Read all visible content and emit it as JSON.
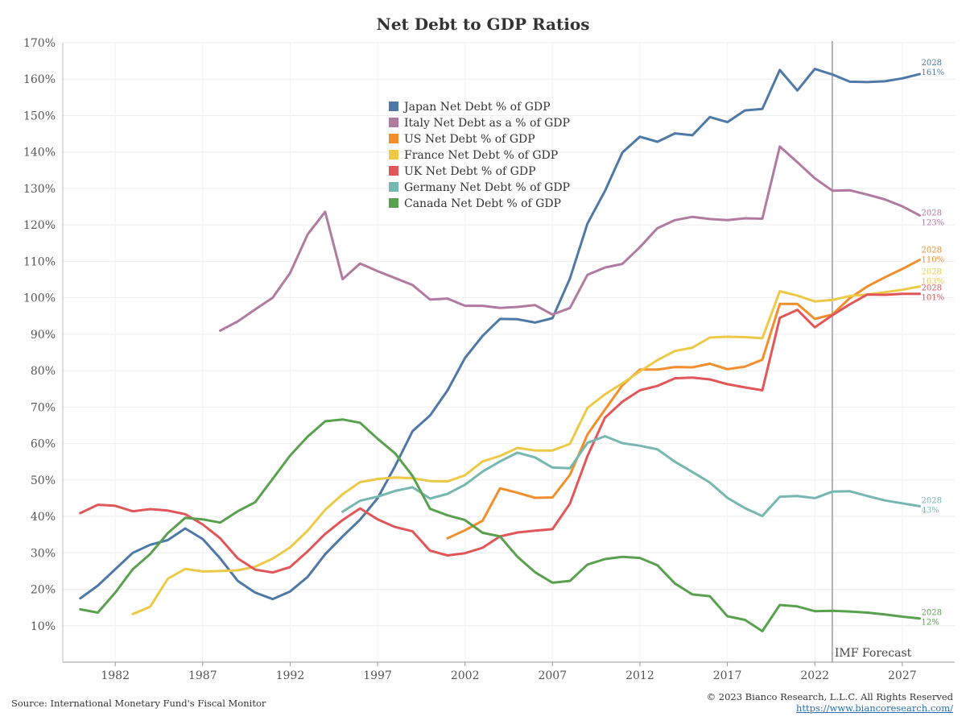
{
  "chart_data": {
    "type": "line",
    "title": "Net Debt to GDP Ratios",
    "xlabel": "",
    "ylabel": "",
    "xlim": [
      1979,
      2030
    ],
    "ylim": [
      0,
      170
    ],
    "x_ticks": [
      1982,
      1987,
      1992,
      1997,
      2002,
      2007,
      2012,
      2017,
      2022,
      2027
    ],
    "y_ticks": [
      {
        "value": 10,
        "label": "10%"
      },
      {
        "value": 20,
        "label": "20%"
      },
      {
        "value": 30,
        "label": "30%"
      },
      {
        "value": 40,
        "label": "40%"
      },
      {
        "value": 50,
        "label": "50%"
      },
      {
        "value": 60,
        "label": "60%"
      },
      {
        "value": 70,
        "label": "70%"
      },
      {
        "value": 80,
        "label": "80%"
      },
      {
        "value": 90,
        "label": "90%"
      },
      {
        "value": 100,
        "label": "100%"
      },
      {
        "value": 110,
        "label": "110%"
      },
      {
        "value": 120,
        "label": "120%"
      },
      {
        "value": 130,
        "label": "130%"
      },
      {
        "value": 140,
        "label": "140%"
      },
      {
        "value": 150,
        "label": "150%"
      },
      {
        "value": 160,
        "label": "160%"
      },
      {
        "value": 170,
        "label": "170%"
      }
    ],
    "grid": true,
    "legend_position": "top-center",
    "forecast_line": {
      "x": 2023,
      "label": "IMF Forecast"
    },
    "series": [
      {
        "name": "Japan Net Debt % of GDP",
        "color": "#4e79a7",
        "x": [
          1980,
          1981,
          1982,
          1983,
          1984,
          1985,
          1986,
          1987,
          1988,
          1989,
          1990,
          1991,
          1992,
          1993,
          1994,
          1995,
          1996,
          1997,
          1998,
          1999,
          2000,
          2001,
          2002,
          2003,
          2004,
          2005,
          2006,
          2007,
          2008,
          2009,
          2010,
          2011,
          2012,
          2013,
          2014,
          2015,
          2016,
          2017,
          2018,
          2019,
          2020,
          2021,
          2022,
          2023,
          2024,
          2025,
          2026,
          2027,
          2028
        ],
        "y": [
          17.5,
          21,
          25.5,
          30,
          32.2,
          33.5,
          36.7,
          33.8,
          28.5,
          22.3,
          19.1,
          17.3,
          19.4,
          23.4,
          29.6,
          34.5,
          39.1,
          45,
          53.8,
          63.4,
          67.7,
          74.6,
          83.5,
          89.5,
          94.2,
          94.1,
          93.2,
          94.4,
          105.3,
          120.4,
          129.3,
          139.9,
          144.2,
          142.8,
          145.1,
          144.6,
          149.6,
          148.2,
          151.4,
          151.8,
          162.5,
          156.9,
          162.8,
          161.3,
          159.3,
          159.2,
          159.4,
          160.2,
          161.4
        ],
        "end_year": "2028",
        "end_label": "161%"
      },
      {
        "name": "Italy Net Debt as a % of GDP",
        "color": "#b07aa1",
        "x": [
          1988,
          1989,
          1990,
          1991,
          1992,
          1993,
          1994,
          1995,
          1996,
          1997,
          1998,
          1999,
          2000,
          2001,
          2002,
          2003,
          2004,
          2005,
          2006,
          2007,
          2008,
          2009,
          2010,
          2011,
          2012,
          2013,
          2014,
          2015,
          2016,
          2017,
          2018,
          2019,
          2020,
          2021,
          2022,
          2023,
          2024,
          2025,
          2026,
          2027,
          2028
        ],
        "y": [
          91,
          93.5,
          96.8,
          100,
          106.8,
          117.4,
          123.6,
          105.1,
          109.4,
          107.3,
          105.4,
          103.5,
          99.5,
          99.8,
          97.8,
          97.8,
          97.2,
          97.5,
          98,
          95.4,
          97.2,
          106.3,
          108.3,
          109.3,
          113.9,
          119.1,
          121.3,
          122.2,
          121.6,
          121.3,
          121.8,
          121.7,
          141.5,
          137.2,
          132.8,
          129.4,
          129.5,
          128.3,
          127,
          125.1,
          122.6
        ],
        "end_year": "2028",
        "end_label": "123%"
      },
      {
        "name": "US Net Debt % of GDP",
        "color": "#f28e2b",
        "x": [
          2001,
          2002,
          2003,
          2004,
          2005,
          2006,
          2007,
          2008,
          2009,
          2010,
          2011,
          2012,
          2013,
          2014,
          2015,
          2016,
          2017,
          2018,
          2019,
          2020,
          2021,
          2022,
          2023,
          2024,
          2025,
          2026,
          2027,
          2028
        ],
        "y": [
          34,
          36.2,
          38.8,
          47.7,
          46.5,
          45.1,
          45.2,
          51.4,
          62.5,
          69.3,
          76,
          80.3,
          80.3,
          81,
          80.9,
          81.9,
          80.4,
          81.1,
          83,
          98.3,
          98.3,
          94.2,
          95.4,
          99.9,
          103.1,
          105.6,
          107.9,
          110.4
        ],
        "end_year": "2028",
        "end_label": "110%"
      },
      {
        "name": "France Net Debt % of GDP",
        "color": "#edc948",
        "x": [
          1983,
          1984,
          1985,
          1986,
          1987,
          1988,
          1989,
          1990,
          1991,
          1992,
          1993,
          1994,
          1995,
          1996,
          1997,
          1998,
          1999,
          2000,
          2001,
          2002,
          2003,
          2004,
          2005,
          2006,
          2007,
          2008,
          2009,
          2010,
          2011,
          2012,
          2013,
          2014,
          2015,
          2016,
          2017,
          2018,
          2019,
          2020,
          2021,
          2022,
          2023,
          2024,
          2025,
          2026,
          2027,
          2028
        ],
        "y": [
          13.2,
          15.2,
          22.9,
          25.6,
          24.9,
          25,
          25.2,
          26.2,
          28.4,
          31.5,
          36.1,
          41.8,
          46.1,
          49.4,
          50.3,
          50.7,
          50.5,
          49.7,
          49.6,
          51.3,
          55.1,
          56.6,
          58.8,
          58.1,
          58.1,
          59.9,
          69.8,
          73.5,
          76.5,
          79.8,
          82.9,
          85.4,
          86.3,
          89.1,
          89.3,
          89.2,
          88.9,
          101.8,
          100.6,
          99,
          99.4,
          100.5,
          100.9,
          101.5,
          102.2,
          103.1
        ],
        "end_year": "2028",
        "end_label": "103%"
      },
      {
        "name": "UK Net Debt % of GDP",
        "color": "#e15759",
        "x": [
          1980,
          1981,
          1982,
          1983,
          1984,
          1985,
          1986,
          1987,
          1988,
          1989,
          1990,
          1991,
          1992,
          1993,
          1994,
          1995,
          1996,
          1997,
          1998,
          1999,
          2000,
          2001,
          2002,
          2003,
          2004,
          2005,
          2006,
          2007,
          2008,
          2009,
          2010,
          2011,
          2012,
          2013,
          2014,
          2015,
          2016,
          2017,
          2018,
          2019,
          2020,
          2021,
          2022,
          2023,
          2024,
          2025,
          2026,
          2027,
          2028
        ],
        "y": [
          40.9,
          43.2,
          42.9,
          41.4,
          42,
          41.6,
          40.6,
          37.8,
          34,
          28.5,
          25.4,
          24.6,
          26.1,
          30.4,
          35.2,
          39,
          42.2,
          39.2,
          37.1,
          35.9,
          30.6,
          29.3,
          29.9,
          31.4,
          34.5,
          35.6,
          36.1,
          36.5,
          43.5,
          56.6,
          67.1,
          71.5,
          74.6,
          75.8,
          77.9,
          78.1,
          77.6,
          76.3,
          75.4,
          74.6,
          94.5,
          96.7,
          91.9,
          95.2,
          98.2,
          100.9,
          100.8,
          101.1,
          101.1
        ],
        "end_year": "2028",
        "end_label": "101%"
      },
      {
        "name": "Germany Net Debt % of GDP",
        "color": "#76b7b2",
        "x": [
          1995,
          1996,
          1997,
          1998,
          1999,
          2000,
          2001,
          2002,
          2003,
          2004,
          2005,
          2006,
          2007,
          2008,
          2009,
          2010,
          2011,
          2012,
          2013,
          2014,
          2015,
          2016,
          2017,
          2018,
          2019,
          2020,
          2021,
          2022,
          2023,
          2024,
          2025,
          2026,
          2027,
          2028
        ],
        "y": [
          41.3,
          44.3,
          45.4,
          47,
          48,
          44.9,
          46.2,
          48.7,
          52.3,
          55.1,
          57.5,
          56.2,
          53.4,
          53.2,
          60.2,
          62,
          60.1,
          59.4,
          58.4,
          55,
          52.2,
          49.3,
          45.1,
          42.3,
          40.1,
          45.4,
          45.6,
          45,
          46.8,
          46.9,
          45.6,
          44.4,
          43.6,
          42.8
        ],
        "end_year": "2028",
        "end_label": "43%"
      },
      {
        "name": "Canada Net Debt % of GDP",
        "color": "#59a14f",
        "x": [
          1980,
          1981,
          1982,
          1983,
          1984,
          1985,
          1986,
          1987,
          1988,
          1989,
          1990,
          1991,
          1992,
          1993,
          1994,
          1995,
          1996,
          1997,
          1998,
          1999,
          2000,
          2001,
          2002,
          2003,
          2004,
          2005,
          2006,
          2007,
          2008,
          2009,
          2010,
          2011,
          2012,
          2013,
          2014,
          2015,
          2016,
          2017,
          2018,
          2019,
          2020,
          2021,
          2022,
          2023,
          2024,
          2025,
          2026,
          2027,
          2028
        ],
        "y": [
          14.5,
          13.6,
          19.1,
          25.5,
          29.7,
          35.4,
          39.6,
          39.2,
          38.3,
          41.4,
          43.9,
          50.3,
          56.7,
          61.9,
          66.1,
          66.6,
          65.7,
          61.3,
          57.3,
          51.1,
          42.1,
          40.3,
          39,
          35.5,
          34.5,
          28.9,
          24.7,
          21.8,
          22.3,
          26.8,
          28.3,
          28.9,
          28.6,
          26.6,
          21.6,
          18.6,
          18.1,
          12.6,
          11.6,
          8.5,
          15.7,
          15.3,
          14,
          14.1,
          13.9,
          13.6,
          13.1,
          12.5,
          12
        ],
        "end_year": "2028",
        "end_label": "12%"
      }
    ]
  },
  "footer": {
    "source": "Source: International Monetary Fund's Fiscal Monitor",
    "copyright": "© 2023 Bianco Research, L.L.C. All Rights Reserved",
    "website": "https://www.biancoresearch.com/"
  }
}
